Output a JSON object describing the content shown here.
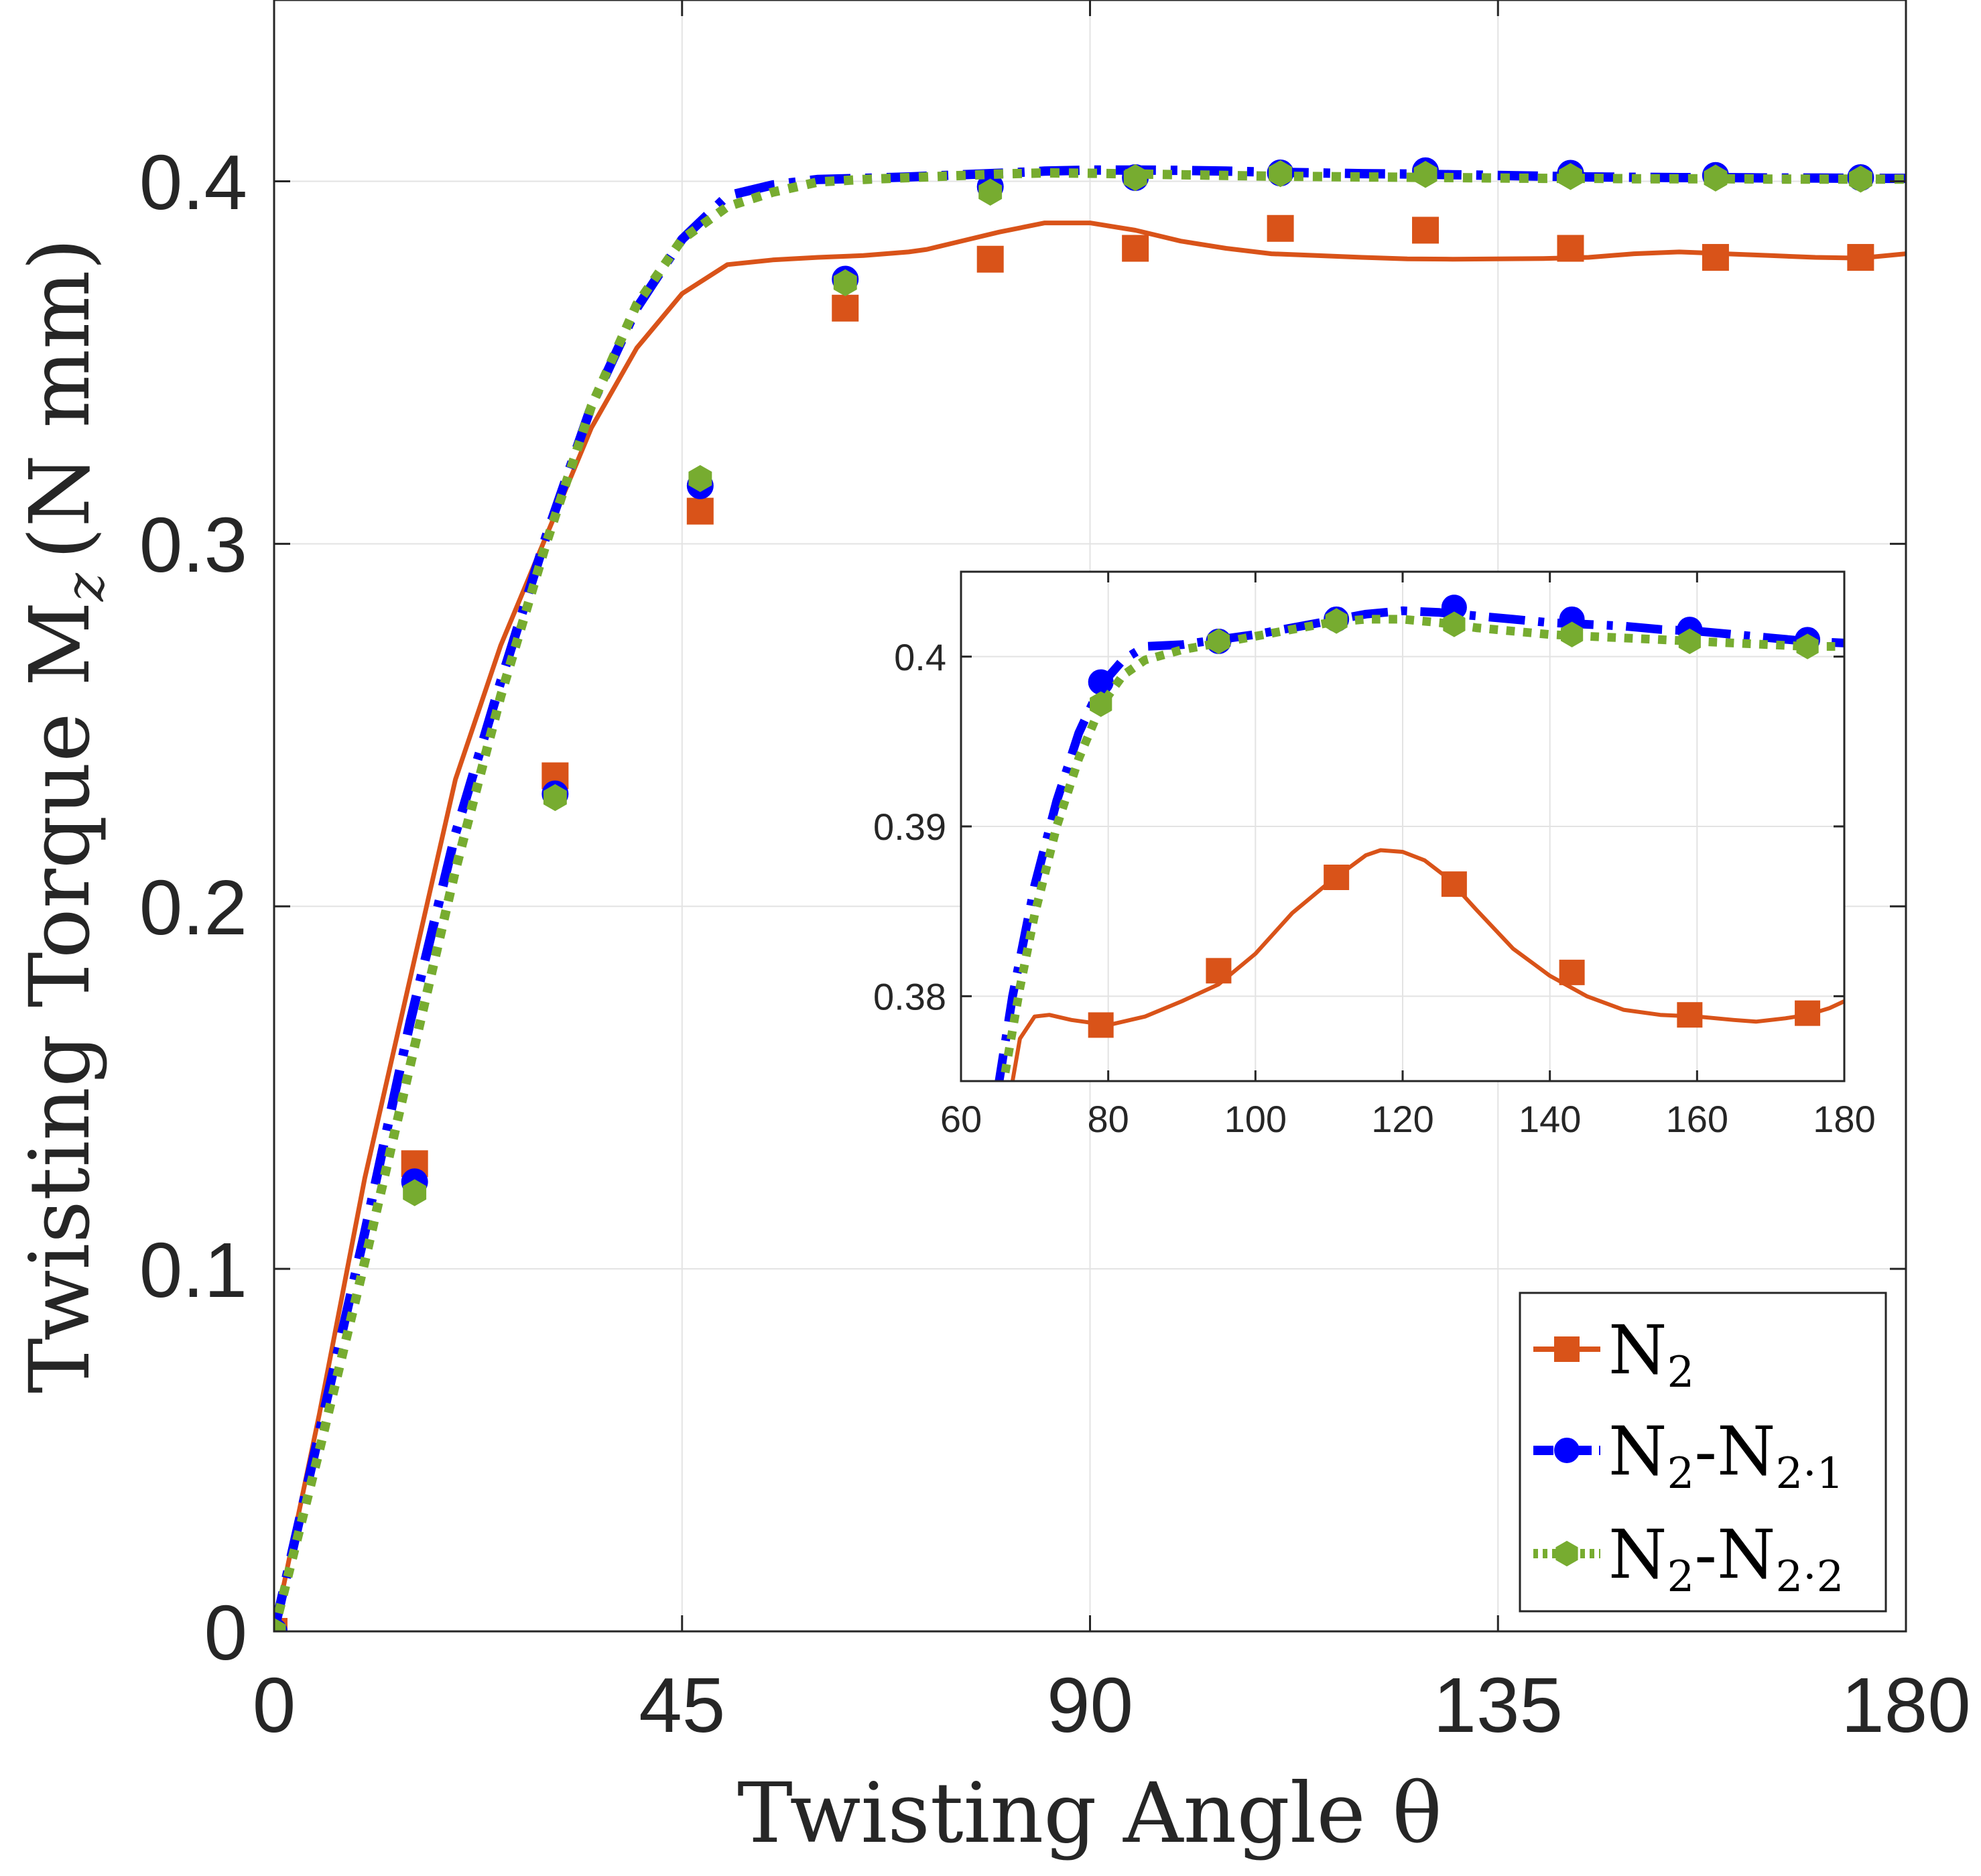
{
  "chart_data": [
    {
      "type": "line",
      "xlabel": "Twisting Angle θ",
      "ylabel": "Twisting Torque M",
      "ylabel_subscript": "z",
      "ylabel_unit": "(N mm)",
      "xlim": [
        0,
        180
      ],
      "ylim": [
        0,
        0.45
      ],
      "xticks": [
        0,
        45,
        90,
        135,
        180
      ],
      "xtick_labels": [
        "0",
        "45",
        "90",
        "135",
        "180"
      ],
      "yticks": [
        0,
        0.1,
        0.2,
        0.3,
        0.4
      ],
      "ytick_labels": [
        "0",
        "0.1",
        "0.2",
        "0.3",
        "0.4"
      ],
      "grid": true,
      "legend_position": "bottom-right",
      "series": [
        {
          "name": "N",
          "name_sub": "2",
          "color": "#D95319",
          "style": "solid",
          "marker": "square",
          "x": [
            0,
            5,
            10,
            15,
            20,
            25,
            30,
            35,
            40,
            45,
            50,
            55,
            60,
            65,
            70,
            72,
            75,
            80,
            85,
            90,
            95,
            100,
            105,
            110,
            115,
            120,
            125,
            130,
            135,
            140,
            145,
            150,
            155,
            160,
            165,
            170,
            175,
            180
          ],
          "y": [
            0,
            0.06,
            0.125,
            0.18,
            0.235,
            0.272,
            0.302,
            0.332,
            0.354,
            0.369,
            0.377,
            0.3783,
            0.379,
            0.3795,
            0.3805,
            0.3812,
            0.383,
            0.386,
            0.3885,
            0.3885,
            0.3865,
            0.3835,
            0.3815,
            0.38,
            0.3795,
            0.379,
            0.3786,
            0.3785,
            0.3786,
            0.3787,
            0.379,
            0.38,
            0.3805,
            0.38,
            0.3795,
            0.379,
            0.3788,
            0.38
          ],
          "marker_x": [
            0,
            15.5,
            31,
            47,
            63,
            79,
            95,
            111,
            127,
            143,
            159,
            175
          ],
          "marker_y": [
            0,
            0.129,
            0.236,
            0.309,
            0.365,
            0.3785,
            0.3815,
            0.387,
            0.3865,
            0.3815,
            0.379,
            0.379
          ]
        },
        {
          "name": "N",
          "name_sub": "2",
          "name_mid": "-N",
          "name_sub2": "2·1",
          "color": "#0000FF",
          "style": "dashdot",
          "marker": "circle",
          "x": [
            0,
            5,
            10,
            15,
            20,
            25,
            30,
            35,
            40,
            45,
            50,
            55,
            60,
            65,
            70,
            75,
            80,
            85,
            90,
            95,
            100,
            105,
            110,
            115,
            120,
            125,
            130,
            135,
            140,
            145,
            150,
            155,
            160,
            165,
            170,
            175,
            180
          ],
          "y": [
            0,
            0.055,
            0.11,
            0.168,
            0.22,
            0.262,
            0.302,
            0.338,
            0.365,
            0.384,
            0.396,
            0.399,
            0.4005,
            0.4008,
            0.4012,
            0.4017,
            0.4022,
            0.4028,
            0.4031,
            0.4031,
            0.403,
            0.4028,
            0.4025,
            0.4023,
            0.4021,
            0.402,
            0.4018,
            0.4016,
            0.4014,
            0.4012,
            0.4011,
            0.401,
            0.401,
            0.4009,
            0.4009,
            0.4008,
            0.4008
          ],
          "marker_x": [
            0,
            15.5,
            31,
            47,
            63,
            79,
            95,
            111,
            127,
            143,
            159,
            175
          ],
          "marker_y": [
            0,
            0.124,
            0.231,
            0.316,
            0.373,
            0.3985,
            0.401,
            0.4023,
            0.4029,
            0.4022,
            0.4016,
            0.401
          ]
        },
        {
          "name": "N",
          "name_sub": "2",
          "name_mid": "-N",
          "name_sub2": "2·2",
          "color": "#77AC30",
          "style": "dotted",
          "marker": "hexagon",
          "x": [
            0,
            5,
            10,
            15,
            20,
            25,
            30,
            35,
            40,
            45,
            50,
            55,
            60,
            65,
            70,
            75,
            80,
            85,
            90,
            95,
            100,
            105,
            110,
            115,
            120,
            125,
            130,
            135,
            140,
            145,
            150,
            155,
            160,
            165,
            170,
            175,
            180
          ],
          "y": [
            0,
            0.05,
            0.102,
            0.156,
            0.21,
            0.258,
            0.3,
            0.338,
            0.366,
            0.384,
            0.393,
            0.397,
            0.3998,
            0.4005,
            0.401,
            0.4015,
            0.402,
            0.4023,
            0.4022,
            0.402,
            0.4018,
            0.4016,
            0.4014,
            0.4013,
            0.4012,
            0.4011,
            0.401,
            0.4009,
            0.4008,
            0.4008,
            0.4007,
            0.4007,
            0.4007,
            0.4006,
            0.4006,
            0.4006,
            0.4006
          ],
          "marker_x": [
            0,
            15.5,
            31,
            47,
            63,
            79,
            95,
            111,
            127,
            143,
            159,
            175
          ],
          "marker_y": [
            0,
            0.121,
            0.23,
            0.318,
            0.372,
            0.397,
            0.401,
            0.4021,
            0.4019,
            0.4013,
            0.4009,
            0.4006
          ]
        }
      ]
    },
    {
      "type": "line",
      "role": "inset",
      "xlim": [
        60,
        180
      ],
      "ylim": [
        0.375,
        0.405
      ],
      "xticks": [
        60,
        80,
        100,
        120,
        140,
        160,
        180
      ],
      "xtick_labels": [
        "60",
        "80",
        "100",
        "120",
        "140",
        "160",
        "180"
      ],
      "yticks": [
        0.38,
        0.39,
        0.4
      ],
      "ytick_labels": [
        "0.38",
        "0.39",
        "0.4"
      ],
      "grid": true,
      "series": [
        {
          "name": "N2",
          "color": "#D95319",
          "style": "solid",
          "marker": "square",
          "x": [
            66,
            67,
            68,
            70,
            72,
            75,
            80,
            85,
            90,
            95,
            100,
            105,
            110,
            115,
            117,
            120,
            123,
            126,
            130,
            135,
            140,
            145,
            150,
            155,
            160,
            165,
            168,
            172,
            175,
            178,
            180
          ],
          "y": [
            0.372,
            0.375,
            0.3775,
            0.3788,
            0.3789,
            0.3786,
            0.3783,
            0.3788,
            0.3797,
            0.3807,
            0.3825,
            0.3849,
            0.3867,
            0.3883,
            0.3886,
            0.3885,
            0.388,
            0.387,
            0.3851,
            0.3828,
            0.3812,
            0.38,
            0.3792,
            0.3789,
            0.3788,
            0.3786,
            0.3785,
            0.3787,
            0.3789,
            0.3793,
            0.3797
          ],
          "marker_x": [
            79,
            95,
            111,
            127,
            143,
            159,
            175
          ],
          "marker_y": [
            0.3783,
            0.3815,
            0.387,
            0.3866,
            0.3814,
            0.3789,
            0.379
          ]
        },
        {
          "name": "N2-N2·1",
          "color": "#0000FF",
          "style": "dashdot",
          "marker": "circle",
          "x": [
            65,
            67,
            70,
            73,
            76,
            79,
            82,
            85,
            90,
            95,
            100,
            105,
            110,
            115,
            120,
            125,
            130,
            135,
            140,
            145,
            150,
            155,
            160,
            165,
            170,
            175,
            180
          ],
          "y": [
            0.3745,
            0.38,
            0.3865,
            0.3915,
            0.3955,
            0.3983,
            0.3998,
            0.4006,
            0.4007,
            0.401,
            0.4013,
            0.4017,
            0.4021,
            0.4025,
            0.4027,
            0.4026,
            0.4024,
            0.4022,
            0.402,
            0.4019,
            0.4018,
            0.4016,
            0.4015,
            0.4013,
            0.4011,
            0.4009,
            0.4008
          ],
          "marker_x": [
            79,
            95,
            111,
            127,
            143,
            159,
            175
          ],
          "marker_y": [
            0.3985,
            0.4009,
            0.4022,
            0.4029,
            0.4022,
            0.4016,
            0.401
          ]
        },
        {
          "name": "N2-N2·2",
          "color": "#77AC30",
          "style": "dotted",
          "marker": "hexagon",
          "x": [
            66,
            68,
            70,
            73,
            76,
            79,
            82,
            85,
            90,
            95,
            100,
            105,
            110,
            115,
            120,
            125,
            130,
            135,
            140,
            145,
            150,
            155,
            160,
            165,
            170,
            175,
            180
          ],
          "y": [
            0.3755,
            0.3805,
            0.3848,
            0.39,
            0.394,
            0.3971,
            0.3989,
            0.3998,
            0.4004,
            0.4008,
            0.4012,
            0.4016,
            0.402,
            0.4022,
            0.4022,
            0.402,
            0.4017,
            0.4015,
            0.4013,
            0.4012,
            0.4011,
            0.401,
            0.4009,
            0.4008,
            0.4007,
            0.4006,
            0.4006
          ],
          "marker_x": [
            79,
            95,
            111,
            127,
            143,
            159,
            175
          ],
          "marker_y": [
            0.3972,
            0.4009,
            0.4021,
            0.4019,
            0.4013,
            0.4009,
            0.4006
          ]
        }
      ]
    }
  ]
}
